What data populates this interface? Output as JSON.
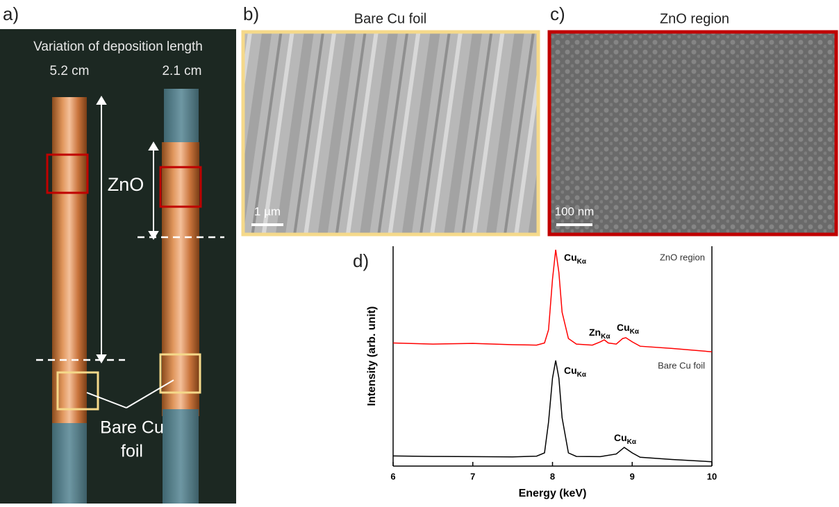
{
  "panels": {
    "a": {
      "letter": "a)",
      "title": "Variation of deposition length",
      "lengths": [
        "5.2 cm",
        "2.1 cm"
      ],
      "zno_label": "ZnO",
      "bare_label": [
        "Bare Cu",
        "foil"
      ]
    },
    "b": {
      "letter": "b)",
      "title": "Bare Cu foil",
      "scale": "1 µm"
    },
    "c": {
      "letter": "c)",
      "title": "ZnO region",
      "scale": "100 nm"
    }
  },
  "chart_data": {
    "type": "line",
    "letter": "d)",
    "x_label": "Energy (keV)",
    "y_label": "Intensity (arb. unit)",
    "xlim": [
      6,
      10
    ],
    "xticks": [
      6,
      7,
      8,
      9,
      10
    ],
    "ylim": [
      0,
      100
    ],
    "series": [
      {
        "name": "ZnO region",
        "color": "#ff0000",
        "x": [
          6.0,
          6.5,
          7.0,
          7.5,
          7.8,
          7.9,
          7.95,
          8.0,
          8.04,
          8.08,
          8.12,
          8.2,
          8.3,
          8.5,
          8.6,
          8.65,
          8.7,
          8.8,
          8.88,
          8.92,
          9.0,
          9.1,
          9.5,
          10.0
        ],
        "values": [
          56,
          55.5,
          55.8,
          55.2,
          55,
          56,
          62,
          85,
          98.4,
          88,
          70,
          58,
          55.5,
          55,
          56.5,
          57.4,
          56,
          55.5,
          58,
          58.4,
          56.5,
          54.5,
          53.5,
          52
        ]
      },
      {
        "name": "Bare Cu foil",
        "color": "#000000",
        "x": [
          6.0,
          6.5,
          7.0,
          7.5,
          7.8,
          7.9,
          7.95,
          8.0,
          8.04,
          8.08,
          8.12,
          8.2,
          8.3,
          8.6,
          8.8,
          8.9,
          9.0,
          9.1,
          9.5,
          10.0
        ],
        "values": [
          4.6,
          4.4,
          4.3,
          4.2,
          4.5,
          6,
          20,
          40,
          48,
          40,
          22,
          6,
          4.4,
          4.3,
          5.5,
          8.5,
          6,
          4,
          3,
          2
        ]
      }
    ],
    "annotations": [
      {
        "text": "Cu",
        "sub": "Kα"
      },
      {
        "text": "Zn",
        "sub": "Kα"
      },
      {
        "text": "Cu",
        "sub": "Kα"
      },
      {
        "text": "Cu",
        "sub": "Kα"
      },
      {
        "text": "Cu",
        "sub": "Kα"
      }
    ]
  }
}
